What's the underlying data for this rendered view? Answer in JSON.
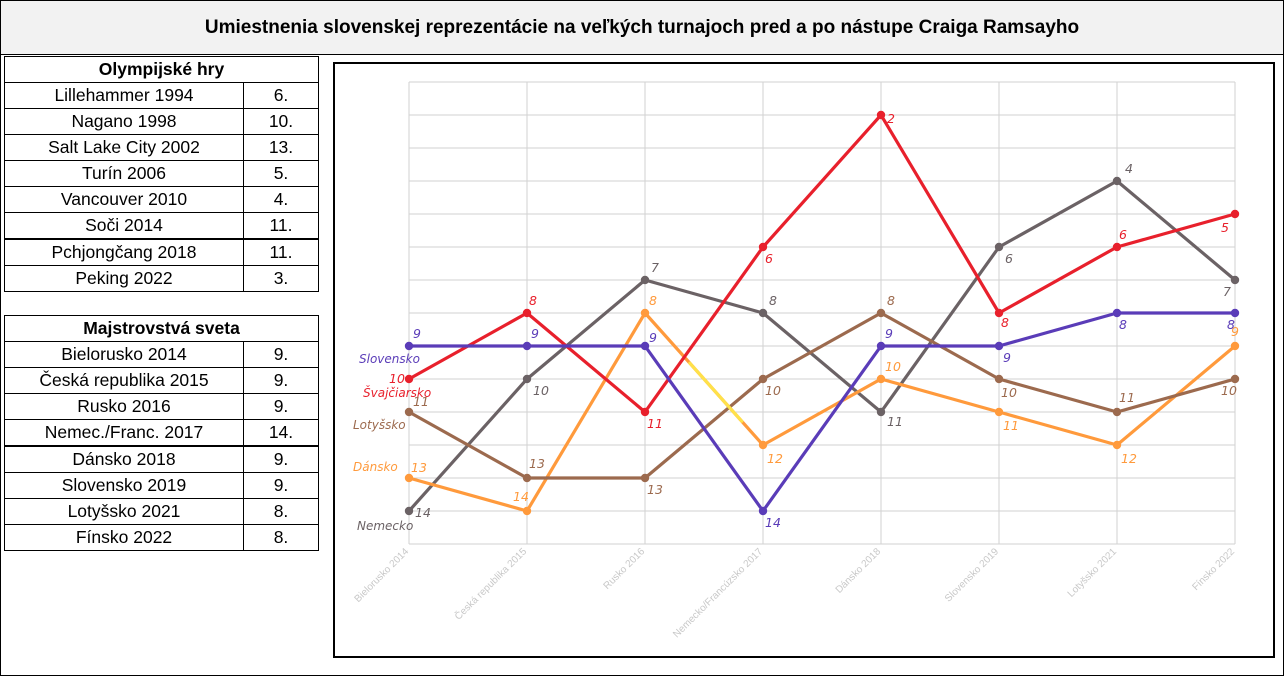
{
  "title": "Umiestnenia slovenskej reprezentácie na veľkých turnajoch pred a po nástupe Craiga Ramsayho",
  "olympic": {
    "header": "Olympijské hry",
    "rows": [
      {
        "event": "Lillehammer 1994",
        "place": "6."
      },
      {
        "event": "Nagano 1998",
        "place": "10."
      },
      {
        "event": "Salt Lake City 2002",
        "place": "13."
      },
      {
        "event": "Turín 2006",
        "place": "5."
      },
      {
        "event": "Vancouver 2010",
        "place": "4."
      },
      {
        "event": "Soči 2014",
        "place": "11."
      },
      {
        "event": "Pchjongčang 2018",
        "place": "11."
      },
      {
        "event": "Peking 2022",
        "place": "3."
      }
    ]
  },
  "world": {
    "header": "Majstrovstvá sveta",
    "rows": [
      {
        "event": "Bielorusko 2014",
        "place": "9."
      },
      {
        "event": "Česká republika 2015",
        "place": "9."
      },
      {
        "event": "Rusko 2016",
        "place": "9."
      },
      {
        "event": "Nemec./Franc. 2017",
        "place": "14."
      },
      {
        "event": "Dánsko 2018",
        "place": "9."
      },
      {
        "event": "Slovensko 2019",
        "place": "9."
      },
      {
        "event": "Lotyšsko 2021",
        "place": "8."
      },
      {
        "event": "Fínsko 2022",
        "place": "8."
      }
    ]
  },
  "chart_data": {
    "type": "line",
    "categories": [
      "Bielorusko 2014",
      "Česká republika 2015",
      "Rusko 2016",
      "Nemecko/Francúzsko 2017",
      "Dánsko 2018",
      "Slovensko 2019",
      "Lotyšsko 2021",
      "Fínsko 2022"
    ],
    "ylim": [
      1,
      15
    ],
    "y_inverted": true,
    "grid": true,
    "series": [
      {
        "name": "Nemecko",
        "color": "#6b6265",
        "values": [
          14,
          10,
          7,
          8,
          11,
          6,
          4,
          7
        ]
      },
      {
        "name": "Dánsko",
        "color": "#ff9a3c",
        "values": [
          13,
          14,
          8,
          12,
          10,
          11,
          12,
          9
        ]
      },
      {
        "name": "Lotyšsko",
        "color": "#9c6a4e",
        "values": [
          11,
          13,
          13,
          10,
          8,
          10,
          11,
          10
        ]
      },
      {
        "name": "Švajčiarsko",
        "color": "#e8202c",
        "values": [
          10,
          8,
          11,
          6,
          2,
          8,
          6,
          5
        ]
      },
      {
        "name": "Slovensko",
        "color": "#5a3cb8",
        "values": [
          9,
          9,
          9,
          14,
          9,
          9,
          8,
          8
        ]
      }
    ]
  }
}
